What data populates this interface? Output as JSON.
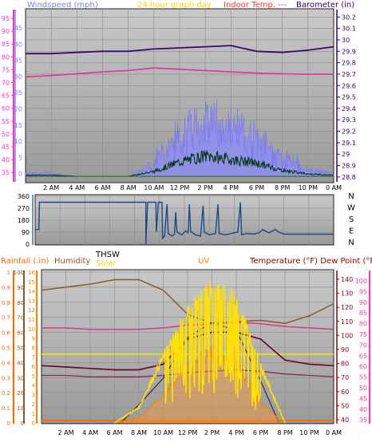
{
  "panel1": {
    "header": {
      "windspeed": "Windspeed (mph)",
      "graph_day": "24 hour graph day",
      "indoor_temp": "Indoor Temp. ---",
      "barometer": "Barometer (in)"
    },
    "colors": {
      "windspeed": "#8080ff",
      "graph_day": "#ffd400",
      "indoor_temp": "#ff3333",
      "barometer": "#330066",
      "left_axis": "#ff33aa"
    },
    "left_ticks": [
      "95",
      "90",
      "85",
      "80",
      "75",
      "70",
      "65",
      "60",
      "55",
      "50",
      "45",
      "40",
      "35"
    ],
    "mid_ticks": [
      "45",
      "40",
      "35",
      "30",
      "25",
      "20",
      "15",
      "10",
      "5",
      "0"
    ],
    "right_ticks": [
      "30.2",
      "30.1",
      "30",
      "29.9",
      "29.8",
      "29.7",
      "29.6",
      "29.5",
      "29.4",
      "29.3",
      "29.2",
      "29.1",
      "29",
      "28.9",
      "28.8"
    ]
  },
  "panel2": {
    "ticks": [
      "360",
      "270",
      "180",
      "90",
      "0"
    ],
    "compass": [
      "N",
      "W",
      "S",
      "E",
      "N"
    ],
    "color": "#1a4a8a"
  },
  "panel3": {
    "header": {
      "rainfall": "Rainfall (.in)",
      "humidity": "Humidity",
      "thsw": "THSW",
      "solar": "Solar",
      "uv": "UV",
      "temperature": "Temperature (°F) Dew Point (°F)"
    },
    "colors": {
      "rainfall": "#ff6600",
      "humidity": "#8b5a2b",
      "thsw": "#000000",
      "solar": "#ffd400",
      "uv": "#ff8000",
      "temperature": "#8b0000",
      "dewpoint_axis": "#ff33aa"
    },
    "rain_ticks": [
      "1",
      "0.9",
      "0.8",
      "0.7",
      "0.6",
      "0.5",
      "0.4",
      "0.3",
      "0.2",
      "0.1",
      "0"
    ],
    "hum_ticks": [
      "100",
      "90",
      "80",
      "70",
      "60",
      "50",
      "40",
      "30",
      "20",
      "10",
      "0"
    ],
    "uv_ticks": [
      "16",
      "15",
      "14",
      "13",
      "12",
      "11",
      "10",
      "9",
      "8",
      "7",
      "6",
      "5",
      "4",
      "3",
      "2",
      "1",
      "0"
    ],
    "temp_ticks": [
      "140",
      "130",
      "120",
      "110",
      "100",
      "90",
      "80",
      "70",
      "60",
      "50",
      "40"
    ],
    "dew_ticks": [
      "100",
      "95",
      "90",
      "85",
      "80",
      "75",
      "70",
      "65",
      "60",
      "55",
      "50",
      "45",
      "40",
      "35"
    ]
  },
  "x_labels": [
    "2 AM",
    "4 AM",
    "6 AM",
    "8 AM",
    "10 AM",
    "12 PM",
    "2 PM",
    "4 PM",
    "6 PM",
    "8 PM",
    "10 PM",
    "0 AM"
  ],
  "chart_data": [
    {
      "type": "line",
      "x": [
        "0 AM",
        "2 AM",
        "4 AM",
        "6 AM",
        "8 AM",
        "10 AM",
        "12 PM",
        "2 PM",
        "4 PM",
        "6 PM",
        "8 PM",
        "10 PM",
        "0 AM"
      ],
      "series": [
        {
          "name": "Barometer (in)",
          "values": [
            29.88,
            29.88,
            29.89,
            29.9,
            29.9,
            29.92,
            29.93,
            29.94,
            29.95,
            29.9,
            29.89,
            29.91,
            29.94
          ]
        },
        {
          "name": "Indoor Temp.",
          "values": [
            73.0,
            73.5,
            74.2,
            75.0,
            75.5,
            76.5,
            76.0,
            75.5,
            75.0,
            74.5,
            74.2,
            74.0,
            74.0
          ]
        },
        {
          "name": "Windspeed (mph)",
          "values": [
            1,
            1,
            0,
            0,
            0,
            4,
            12,
            17,
            14,
            11,
            5,
            2,
            1
          ]
        }
      ]
    },
    {
      "type": "line",
      "title": "",
      "x": [
        "0 AM",
        "2 AM",
        "4 AM",
        "6 AM",
        "8 AM",
        "10 AM",
        "12 PM",
        "2 PM",
        "4 PM",
        "6 PM",
        "8 PM",
        "10 PM",
        "0 AM"
      ],
      "series": [
        {
          "name": "",
          "values": [
            110,
            315,
            315,
            315,
            315,
            315,
            315,
            315,
            315,
            90,
            85,
            75,
            75
          ]
        }
      ],
      "ylim": [
        0,
        360
      ]
    },
    {
      "type": "line",
      "x": [
        "0 AM",
        "2 AM",
        "4 AM",
        "6 AM",
        "8 AM",
        "10 AM",
        "12 PM",
        "2 PM",
        "4 PM",
        "6 PM",
        "8 PM",
        "10 PM",
        "0 AM"
      ],
      "series": [
        {
          "name": "Humidity",
          "values": [
            88,
            90,
            92,
            95,
            95,
            88,
            72,
            66,
            67,
            68,
            66,
            71,
            79
          ]
        },
        {
          "name": "Temperature (°F)",
          "values": [
            73,
            72,
            71,
            70,
            70,
            74,
            92,
            97,
            97,
            92,
            77,
            74,
            73
          ]
        },
        {
          "name": "Dew Point (°F)",
          "values": [
            68,
            68,
            67,
            67,
            67,
            68,
            70,
            71,
            72,
            71,
            69,
            68,
            67
          ]
        },
        {
          "name": "THSW",
          "values": [
            null,
            null,
            null,
            null,
            45,
            64,
            93,
            104,
            98,
            62,
            null,
            null,
            null
          ]
        },
        {
          "name": "Solar",
          "values": [
            0,
            0,
            0,
            0,
            60,
            260,
            430,
            520,
            480,
            220,
            0,
            0,
            0
          ]
        },
        {
          "name": "UV",
          "values": [
            0,
            0,
            0,
            0,
            0.5,
            3,
            6,
            7.5,
            6.5,
            2,
            0,
            0,
            0
          ]
        },
        {
          "name": "Rainfall (.in)",
          "values": [
            0,
            0,
            0,
            0,
            0,
            0,
            0,
            0,
            0,
            0,
            0,
            0,
            0
          ]
        }
      ]
    }
  ]
}
